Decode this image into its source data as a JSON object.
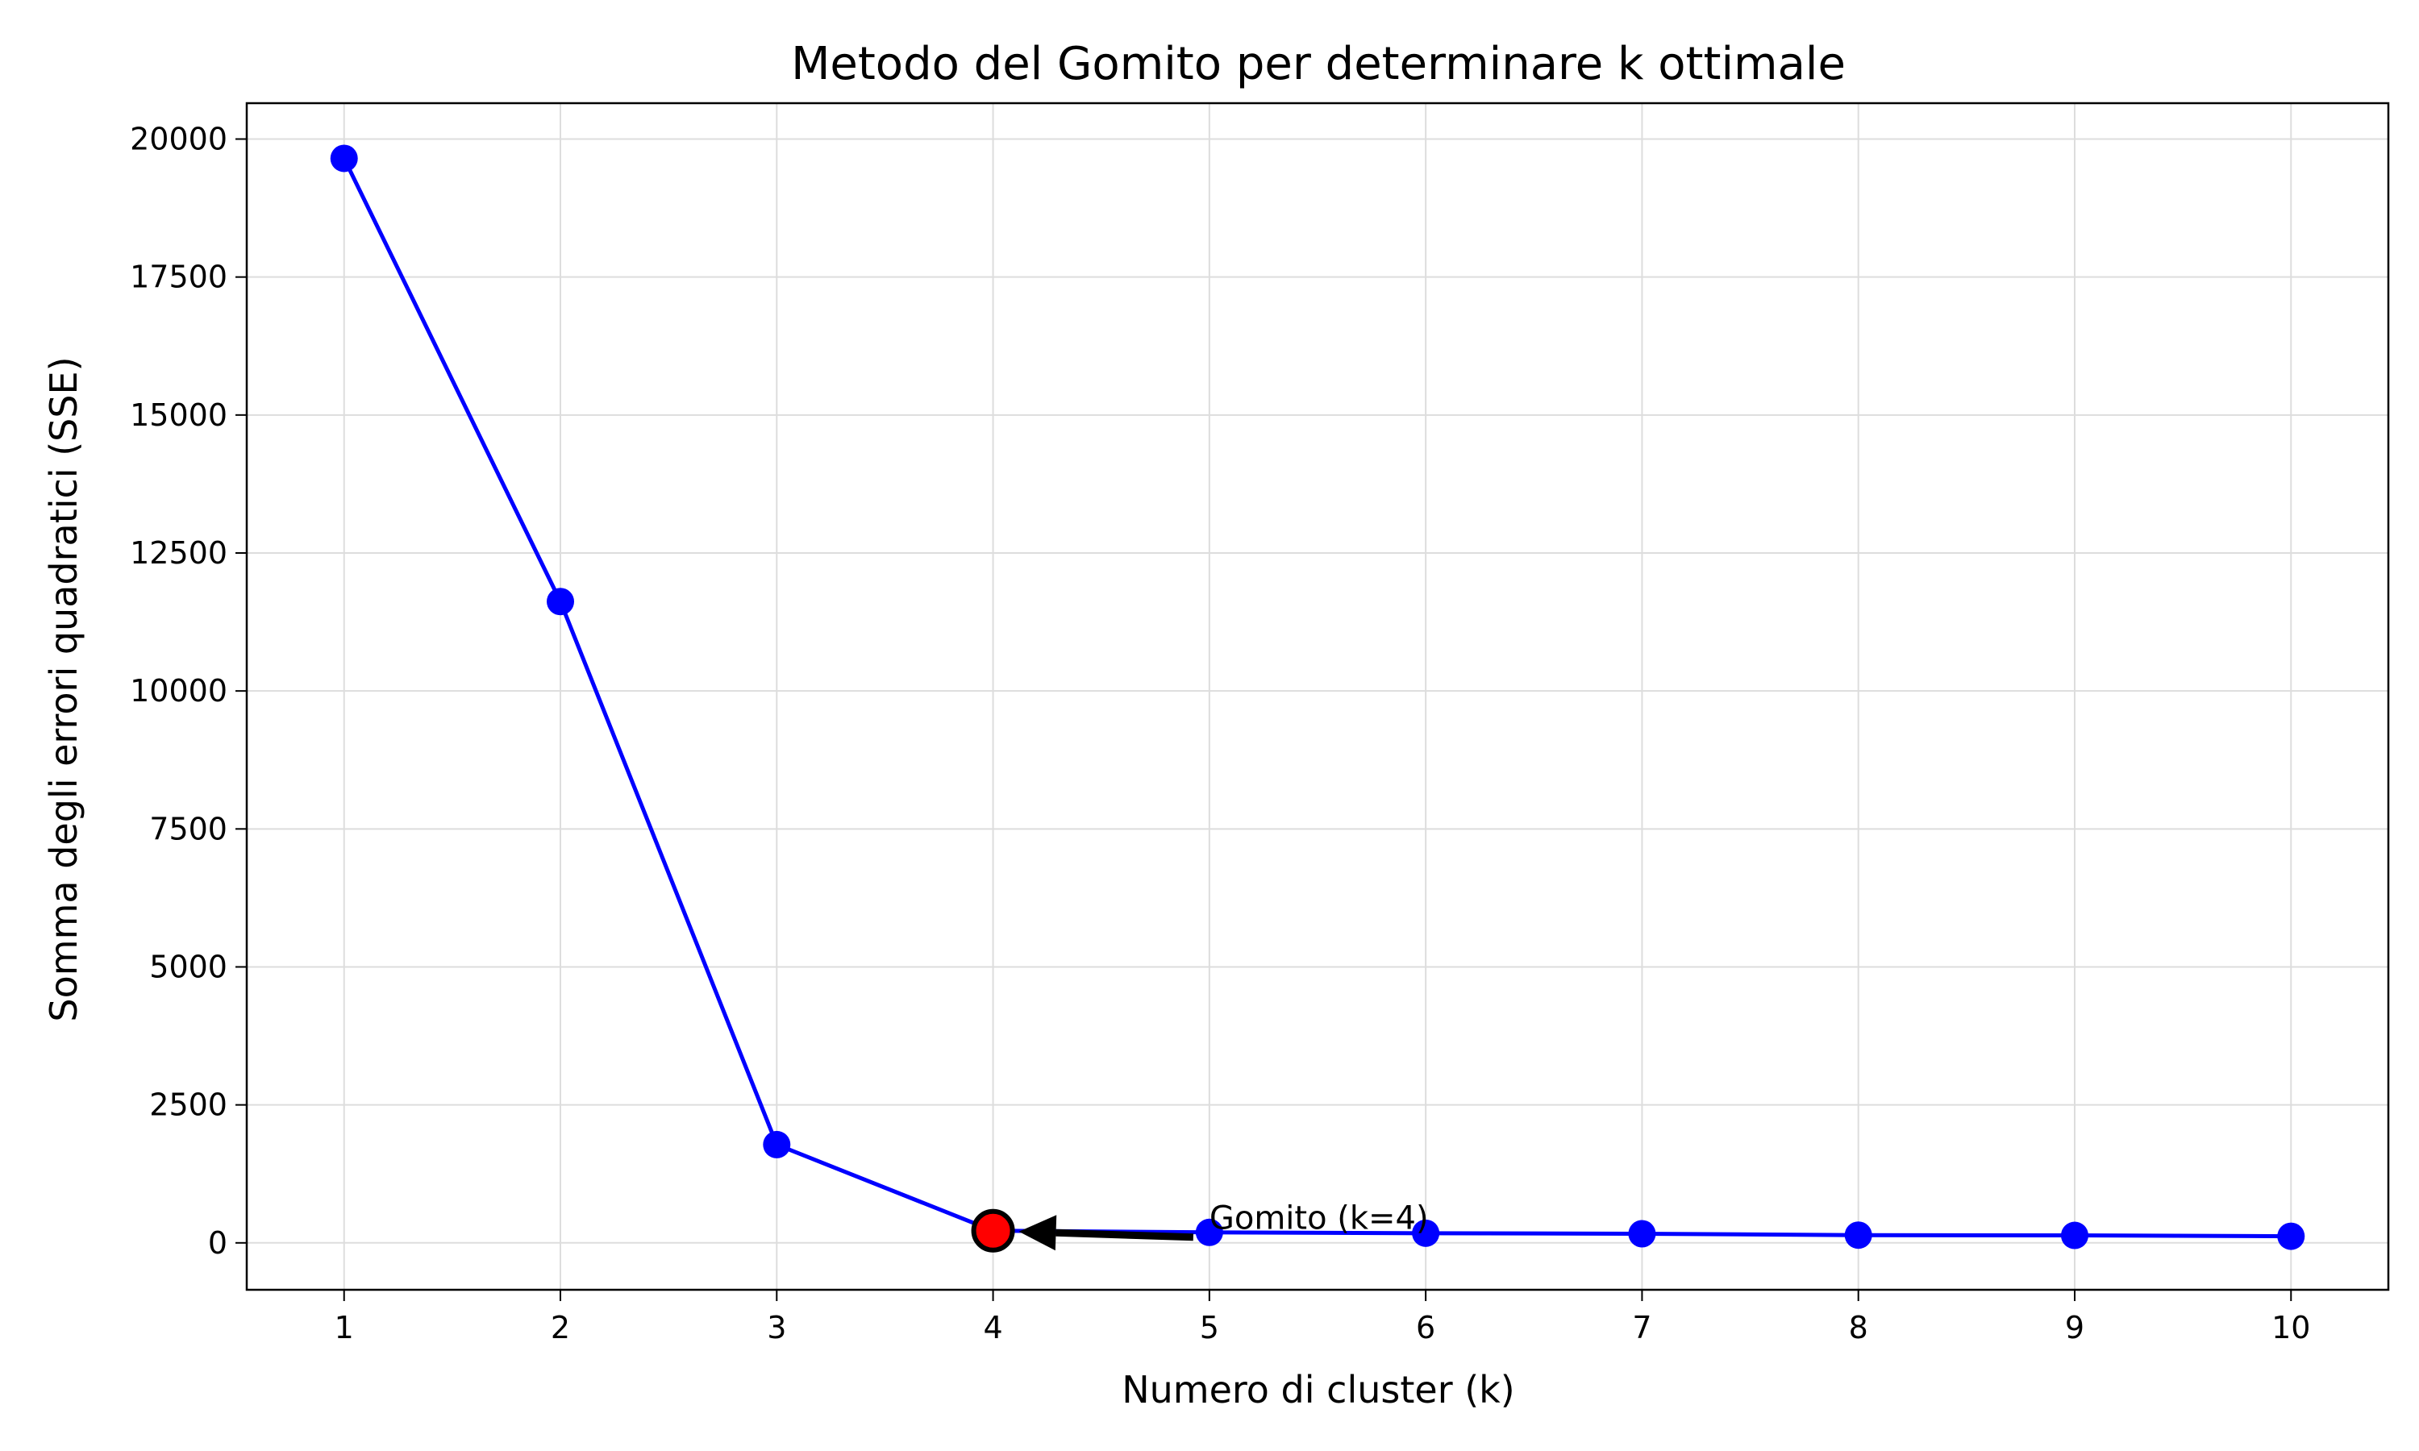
{
  "chart_data": {
    "type": "line",
    "title": "Metodo del Gomito per determinare k ottimale",
    "xlabel": "Numero di cluster (k)",
    "ylabel": "Somma degli errori quadratici (SSE)",
    "x": [
      1,
      2,
      3,
      4,
      5,
      6,
      7,
      8,
      9,
      10
    ],
    "x_ticks": [
      "1",
      "2",
      "3",
      "4",
      "5",
      "6",
      "7",
      "8",
      "9",
      "10"
    ],
    "y_ticks": [
      "0",
      "2500",
      "5000",
      "7500",
      "10000",
      "12500",
      "15000",
      "17500",
      "20000"
    ],
    "xlim": [
      0.55,
      10.45
    ],
    "ylim": [
      -850,
      20650
    ],
    "grid": true,
    "series": [
      {
        "color": "#0000ff",
        "values": [
          19650,
          11620,
          1780,
          220,
          190,
          175,
          165,
          140,
          135,
          120
        ]
      }
    ],
    "highlight": {
      "x": 4,
      "y": 220,
      "color": "#ff0000"
    },
    "annotation": {
      "text": "Gomito (k=4)",
      "text_x": 5,
      "text_y": 220,
      "target_x": 4,
      "target_y": 220
    }
  }
}
